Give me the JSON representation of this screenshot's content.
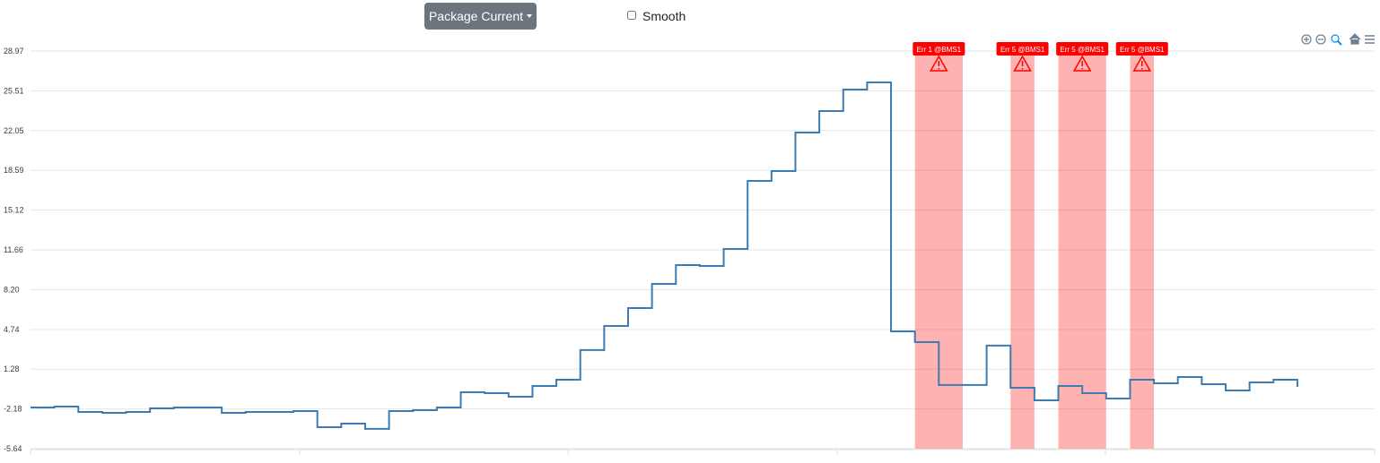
{
  "toolbar": {
    "dropdown": "Package Current",
    "checkbox": "Smooth"
  },
  "chart_data": {
    "type": "line",
    "step": true,
    "color": "#3d7bb0",
    "values": [
      -2.05,
      -1.98,
      -2.44,
      -2.52,
      -2.44,
      -2.13,
      -2.05,
      -2.05,
      -2.52,
      -2.44,
      -2.44,
      -2.37,
      -3.77,
      -3.46,
      -3.92,
      -2.37,
      -2.29,
      -2.05,
      -0.73,
      -0.81,
      -1.12,
      -0.18,
      0.36,
      2.94,
      5.04,
      6.6,
      8.7,
      10.34,
      10.26,
      11.74,
      17.67,
      18.52,
      21.88,
      23.75,
      25.62,
      26.24,
      4.57,
      3.64,
      -0.1,
      -0.1,
      3.33,
      -0.34,
      -1.43,
      -0.18,
      -0.81,
      -1.27,
      0.36,
      0.05,
      0.6,
      -0.03,
      -0.57,
      0.13,
      0.36,
      -0.18
    ],
    "ylim": [
      -5.64,
      28.97
    ],
    "yticks": [
      -5.64,
      -2.18,
      1.28,
      4.74,
      {
        "value": 8.2,
        "label": "8.20"
      },
      11.66,
      15.12,
      18.59,
      22.05,
      25.51,
      28.97
    ],
    "grid": true,
    "annotations": [
      {
        "label": "Err 1 @BMS1",
        "x_range": [
          37,
          39
        ],
        "color": "#ff0000"
      },
      {
        "label": "Err 5 @BMS1",
        "x_range": [
          41,
          42
        ],
        "color": "#ff0000"
      },
      {
        "label": "Err 5 @BMS1",
        "x_range": [
          43,
          45
        ],
        "color": "#ff0000"
      },
      {
        "label": "Err 5 @BMS1",
        "x_range": [
          46,
          47
        ],
        "color": "#ff0000"
      }
    ]
  }
}
